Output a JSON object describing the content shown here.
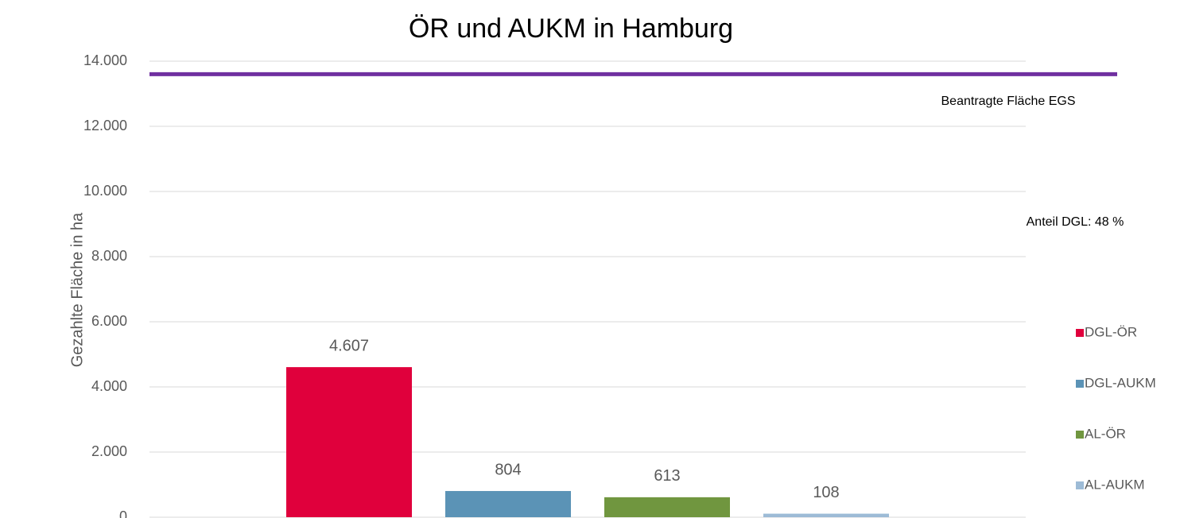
{
  "chart_data": {
    "type": "bar",
    "title": "ÖR und AUKM in Hamburg",
    "y_label": "Gezahlte Fläche in ha",
    "categories": [
      null
    ],
    "series": [
      {
        "name": "DGL-ÖR",
        "color": "#e0003c",
        "values": [
          4607
        ],
        "value_labels": [
          "4.607"
        ]
      },
      {
        "name": "DGL-AUKM",
        "color": "#5b93b6",
        "values": [
          804
        ]
      },
      {
        "name": "AL-ÖR",
        "color": "#70963f",
        "values": [
          613
        ]
      },
      {
        "name": "AL-AUKM",
        "color": "#9dbbd6",
        "values": [
          108
        ]
      }
    ],
    "reference_line": {
      "value": 13600,
      "label": "Beantragte Fläche EGS",
      "color": "#7030a0"
    },
    "annotation": "Anteil DGL: 48 %",
    "ylim": [
      0,
      14000
    ],
    "yticks": [
      0,
      {
        "value": 2000,
        "label": "2.000"
      },
      {
        "value": 4000,
        "label": "4.000"
      },
      {
        "value": 6000,
        "label": "6.000"
      },
      {
        "value": 8000,
        "label": "8.000"
      },
      {
        "value": 10000,
        "label": "10.000"
      },
      {
        "value": 12000,
        "label": "12.000"
      },
      {
        "value": 14000,
        "label": "14.000"
      }
    ],
    "grid": true,
    "legend": "right"
  }
}
